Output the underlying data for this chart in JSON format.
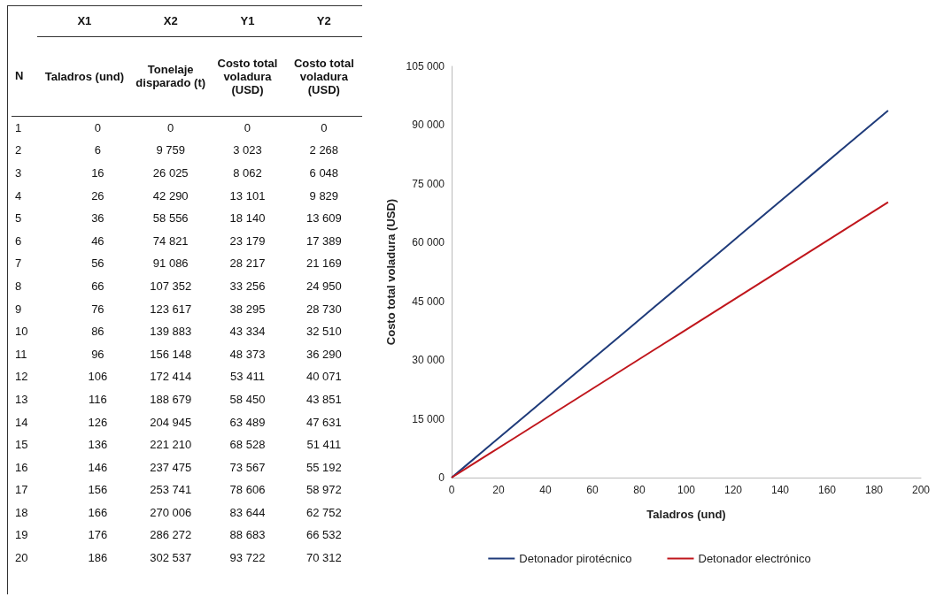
{
  "chart_data": {
    "type": "line",
    "xlabel": "Taladros (und)",
    "ylabel": "Costo total voladura (USD)",
    "x": [
      0,
      6,
      16,
      26,
      36,
      46,
      56,
      66,
      76,
      86,
      96,
      106,
      116,
      126,
      136,
      146,
      156,
      166,
      176,
      186
    ],
    "series": [
      {
        "name": "Detonador pirotécnico",
        "color": "#1f3b7a",
        "values": [
          0,
          3023,
          8062,
          13101,
          18140,
          23179,
          28217,
          33256,
          38295,
          43334,
          48373,
          53411,
          58450,
          63489,
          68528,
          73567,
          78606,
          83644,
          88683,
          93722
        ]
      },
      {
        "name": "Detonador electrónico",
        "color": "#c0161c",
        "values": [
          0,
          2268,
          6048,
          9829,
          13609,
          17389,
          21169,
          24950,
          28730,
          32510,
          36290,
          40071,
          43851,
          47631,
          51411,
          55192,
          58972,
          62752,
          66532,
          70312
        ]
      }
    ],
    "xlim": [
      0,
      200
    ],
    "xticks": [
      0,
      20,
      40,
      60,
      80,
      100,
      120,
      140,
      160,
      180,
      200
    ],
    "ylim": [
      0,
      105000
    ],
    "yticks": [
      0,
      15000,
      30000,
      45000,
      60000,
      75000,
      90000,
      105000
    ],
    "grid": false,
    "legend": "bottom",
    "marker": "none",
    "line_style": "solid",
    "annotations": [
      "N",
      "X1",
      "X2",
      "Y1",
      "Y2",
      "Taladros (und)",
      "Tonelaje disparado (t)",
      "Costo total voladura (USD)",
      "Costo total voladura (USD)",
      "1",
      "0",
      "0",
      "0",
      "0",
      "2",
      "6",
      "9 759",
      "3 023",
      "2 268",
      "3",
      "16",
      "26 025",
      "8 062",
      "6 048",
      "4",
      "26",
      "42 290",
      "13 101",
      "9 829",
      "5",
      "36",
      "58 556",
      "18 140",
      "13 609",
      "6",
      "46",
      "74 821",
      "23 179",
      "17 389",
      "7",
      "56",
      "91 086",
      "28 217",
      "21 169",
      "8",
      "66",
      "107 352",
      "33 256",
      "24 950",
      "9",
      "76",
      "123 617",
      "38 295",
      "28 730",
      "10",
      "86",
      "139 883",
      "43 334",
      "32 510",
      "11",
      "96",
      "156 148",
      "48 373",
      "36 290",
      "12",
      "106",
      "172 414",
      "53 411",
      "40 071",
      "13",
      "116",
      "188 679",
      "58 450",
      "43 851",
      "14",
      "126",
      "204 945",
      "63 489",
      "47 631",
      "15",
      "136",
      "221 210",
      "68 528",
      "51 411",
      "16",
      "146",
      "237 475",
      "73 567",
      "55 192",
      "17",
      "156",
      "253 741",
      "78 606",
      "58 972",
      "18",
      "166",
      "270 006",
      "83 644",
      "62 752",
      "19",
      "176",
      "286 272",
      "88 683",
      "66 532",
      "20",
      "186",
      "302 537",
      "93 722",
      "70 312"
    ]
  }
}
